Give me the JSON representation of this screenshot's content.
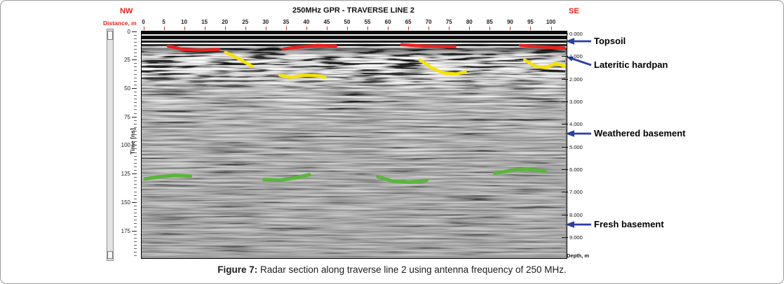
{
  "header": {
    "title": "250MHz GPR - TRAVERSE LINE 2",
    "nw": "NW",
    "se": "SE"
  },
  "axes": {
    "distance": {
      "label": "Distance, m",
      "ticks": [
        0,
        5,
        10,
        15,
        20,
        25,
        30,
        35,
        40,
        45,
        50,
        55,
        60,
        65,
        70,
        75,
        80,
        85,
        90,
        95,
        100
      ]
    },
    "time": {
      "label": "Time [ns]",
      "ticks": [
        0,
        25,
        50,
        75,
        100,
        125,
        150,
        175
      ]
    },
    "depth": {
      "label": "Depth, m",
      "ticks": [
        "0.000",
        "1.000",
        "2.000",
        "3.000",
        "4.000",
        "5.000",
        "6.000",
        "7.000",
        "8.000",
        "9.000"
      ]
    }
  },
  "annotations": [
    {
      "label": "Topsoil"
    },
    {
      "label": "Lateritic hardpan"
    },
    {
      "label": "Weathered basement"
    },
    {
      "label": "Fresh basement"
    }
  ],
  "colors": {
    "direction_text": "#e8211d",
    "arrow_blue": "#2b3f9f",
    "horizon_red": "#e8211d",
    "horizon_yellow": "#f6e300",
    "horizon_green": "#59b63a"
  },
  "horizons": {
    "red": {
      "name": "topsoil-base-horizon",
      "width": 4.5,
      "segments": [
        [
          [
            38,
            21
          ],
          [
            60,
            26
          ],
          [
            85,
            27
          ],
          [
            110,
            26
          ]
        ],
        [
          [
            203,
            25
          ],
          [
            228,
            22
          ],
          [
            252,
            20
          ],
          [
            278,
            21
          ]
        ],
        [
          [
            372,
            19
          ],
          [
            405,
            21
          ],
          [
            448,
            22
          ]
        ],
        [
          [
            542,
            20
          ],
          [
            570,
            22
          ],
          [
            605,
            24
          ]
        ]
      ]
    },
    "yellow": {
      "name": "lateritic-hardpan-horizon",
      "width": 4.5,
      "segments": [
        [
          [
            120,
            30
          ],
          [
            140,
            40
          ],
          [
            158,
            50
          ]
        ],
        [
          [
            198,
            63
          ],
          [
            213,
            66
          ],
          [
            230,
            63
          ],
          [
            247,
            63
          ],
          [
            262,
            66
          ]
        ],
        [
          [
            398,
            41
          ],
          [
            414,
            52
          ],
          [
            432,
            60
          ],
          [
            450,
            61
          ],
          [
            463,
            58
          ]
        ],
        [
          [
            548,
            41
          ],
          [
            563,
            50
          ],
          [
            578,
            52
          ],
          [
            592,
            46
          ],
          [
            606,
            50
          ]
        ]
      ]
    },
    "green": {
      "name": "basement-horizon",
      "width": 5,
      "segments": [
        [
          [
            5,
            212
          ],
          [
            25,
            209
          ],
          [
            48,
            207
          ],
          [
            70,
            208
          ]
        ],
        [
          [
            175,
            213
          ],
          [
            198,
            214
          ],
          [
            222,
            210
          ],
          [
            240,
            206
          ]
        ],
        [
          [
            338,
            209
          ],
          [
            358,
            215
          ],
          [
            382,
            217
          ],
          [
            408,
            214
          ]
        ],
        [
          [
            505,
            204
          ],
          [
            528,
            200
          ],
          [
            552,
            198
          ],
          [
            577,
            201
          ]
        ]
      ]
    }
  },
  "caption": {
    "label": "Figure 7:",
    "text": " Radar section along traverse line 2 using antenna frequency of 250 MHz."
  }
}
